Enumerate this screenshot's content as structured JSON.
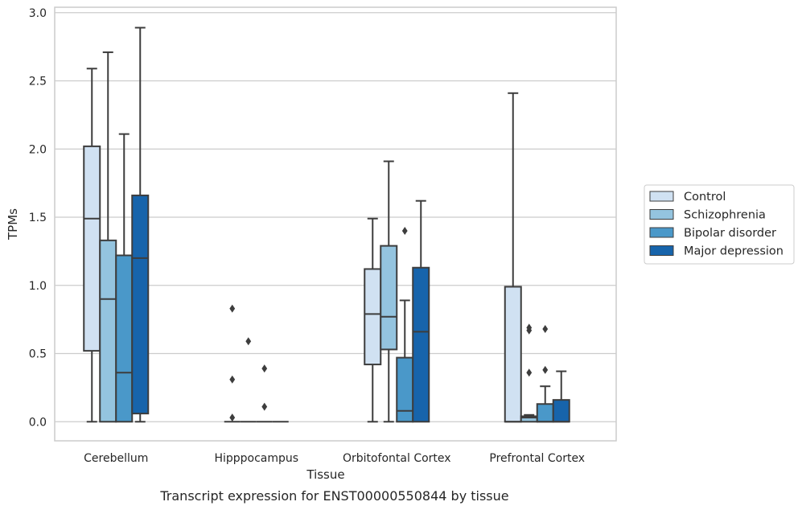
{
  "chart_data": {
    "type": "box",
    "caption": "Transcript expression for ENST00000550844 by tissue",
    "xlabel": "Tissue",
    "ylabel": "TPMs",
    "ylim": [
      -0.14,
      3.04
    ],
    "yticks": [
      0.0,
      0.5,
      1.0,
      1.5,
      2.0,
      2.5,
      3.0
    ],
    "ytick_labels": [
      "0.0",
      "0.5",
      "1.0",
      "1.5",
      "2.0",
      "2.5",
      "3.0"
    ],
    "grid": "horizontal",
    "legend_position": "right",
    "categories": [
      "Cerebellum",
      "Hipppocampus",
      "Orbitofontal Cortex",
      "Prefrontal Cortex"
    ],
    "series": [
      {
        "name": "Control",
        "color": "#d0e1f2",
        "boxes": [
          {
            "whislo": 0.0,
            "q1": 0.52,
            "median": 1.49,
            "q3": 2.02,
            "whishi": 2.59,
            "fliers": []
          },
          {
            "whislo": 0.0,
            "q1": 0.0,
            "median": 0.0,
            "q3": 0.0,
            "whishi": 0.0,
            "fliers": [
              0.03,
              0.31,
              0.83
            ]
          },
          {
            "whislo": 0.0,
            "q1": 0.42,
            "median": 0.79,
            "q3": 1.12,
            "whishi": 1.49,
            "fliers": []
          },
          {
            "whislo": 0.0,
            "q1": 0.0,
            "median": 0.0,
            "q3": 0.99,
            "whishi": 2.41,
            "fliers": []
          }
        ]
      },
      {
        "name": "Schizophrenia",
        "color": "#94c4df",
        "boxes": [
          {
            "whislo": 0.0,
            "q1": 0.0,
            "median": 0.9,
            "q3": 1.33,
            "whishi": 2.71,
            "fliers": []
          },
          {
            "whislo": 0.0,
            "q1": 0.0,
            "median": 0.0,
            "q3": 0.0,
            "whishi": 0.0,
            "fliers": [
              0.59
            ]
          },
          {
            "whislo": 0.0,
            "q1": 0.53,
            "median": 0.77,
            "q3": 1.29,
            "whishi": 1.91,
            "fliers": []
          },
          {
            "whislo": 0.0,
            "q1": 0.0,
            "median": 0.03,
            "q3": 0.04,
            "whishi": 0.05,
            "fliers": [
              0.36,
              0.67,
              0.69
            ]
          }
        ]
      },
      {
        "name": "Bipolar disorder",
        "color": "#4a98c9",
        "boxes": [
          {
            "whislo": 0.0,
            "q1": 0.0,
            "median": 0.36,
            "q3": 1.22,
            "whishi": 2.11,
            "fliers": []
          },
          {
            "whislo": 0.0,
            "q1": 0.0,
            "median": 0.0,
            "q3": 0.0,
            "whishi": 0.0,
            "fliers": [
              0.11,
              0.39
            ]
          },
          {
            "whislo": 0.0,
            "q1": 0.0,
            "median": 0.08,
            "q3": 0.47,
            "whishi": 0.89,
            "fliers": [
              1.4
            ]
          },
          {
            "whislo": 0.0,
            "q1": 0.0,
            "median": 0.0,
            "q3": 0.13,
            "whishi": 0.26,
            "fliers": [
              0.38,
              0.68
            ]
          }
        ]
      },
      {
        "name": "Major depression",
        "color": "#1764ab",
        "boxes": [
          {
            "whislo": 0.0,
            "q1": 0.06,
            "median": 1.2,
            "q3": 1.66,
            "whishi": 2.89,
            "fliers": []
          },
          {
            "whislo": 0.0,
            "q1": 0.0,
            "median": 0.0,
            "q3": 0.0,
            "whishi": 0.0,
            "fliers": []
          },
          {
            "whislo": 0.0,
            "q1": 0.0,
            "median": 0.66,
            "q3": 1.13,
            "whishi": 1.62,
            "fliers": []
          },
          {
            "whislo": 0.0,
            "q1": 0.0,
            "median": 0.0,
            "q3": 0.16,
            "whishi": 0.37,
            "fliers": []
          }
        ]
      }
    ],
    "colors": {
      "box_edge": "#3d3d3d",
      "grid": "#cccccc",
      "frame": "#cccccc",
      "text": "#262626"
    }
  }
}
